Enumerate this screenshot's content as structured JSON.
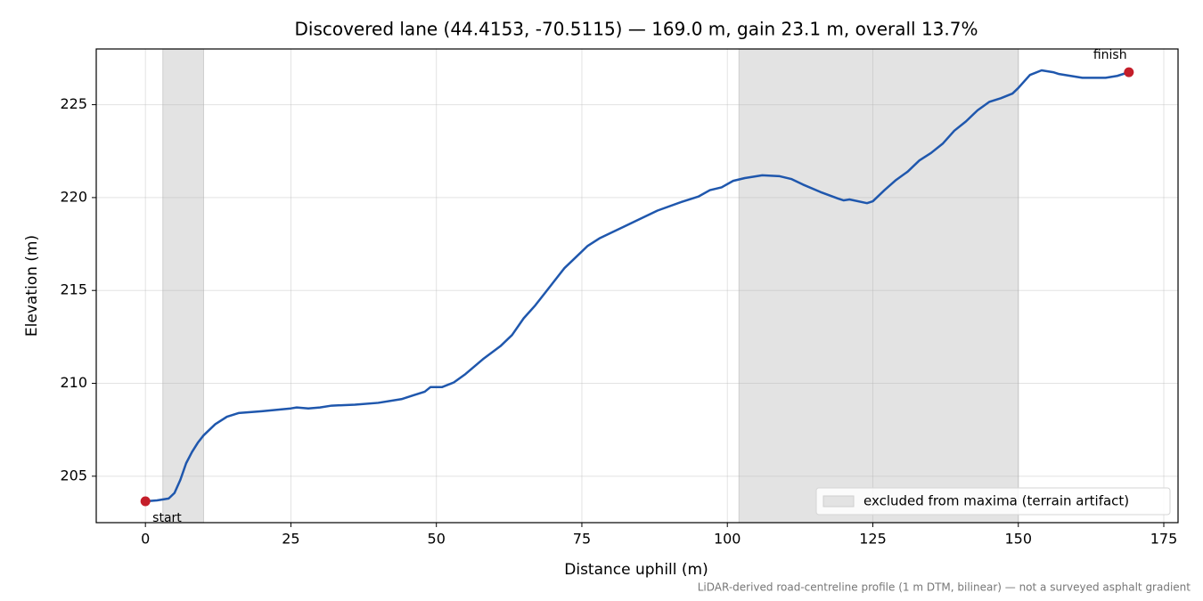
{
  "chart_data": {
    "type": "line",
    "title": "Discovered lane (44.4153, -70.5115) — 169.0 m, gain 23.1 m, overall 13.7%",
    "x_label": "Distance uphill (m)",
    "y_label": "Elevation (m)",
    "footnote": "LiDAR-derived road-centreline profile (1 m DTM, bilinear) — not a surveyed asphalt gradient",
    "x": [
      0,
      2,
      4,
      5,
      6,
      7,
      8,
      9,
      10,
      12,
      14,
      16,
      20,
      25,
      26,
      28,
      30,
      32,
      36,
      40,
      44,
      46,
      48,
      49,
      51,
      53,
      55,
      58,
      61,
      63,
      65,
      67,
      69,
      71,
      72,
      74,
      76,
      78,
      80,
      84,
      88,
      92,
      95,
      97,
      99,
      101,
      103,
      106,
      109,
      111,
      113,
      116,
      119,
      120,
      121,
      124,
      125,
      127,
      129,
      131,
      133,
      135,
      137,
      139,
      141,
      143,
      145,
      147,
      149,
      150,
      152,
      154,
      156,
      157,
      159,
      161,
      163,
      165,
      167,
      169
    ],
    "series": [
      {
        "color": "#1f57ad",
        "values": [
          203.65,
          203.7,
          203.8,
          204.1,
          204.8,
          205.7,
          206.3,
          206.8,
          207.2,
          207.8,
          208.2,
          208.4,
          208.5,
          208.65,
          208.7,
          208.65,
          208.7,
          208.8,
          208.85,
          208.95,
          209.15,
          209.35,
          209.55,
          209.8,
          209.8,
          210.05,
          210.5,
          211.3,
          212.0,
          212.6,
          213.5,
          214.2,
          215.0,
          215.8,
          216.2,
          216.8,
          217.4,
          217.8,
          218.1,
          218.7,
          219.3,
          219.75,
          220.05,
          220.4,
          220.55,
          220.9,
          221.05,
          221.2,
          221.15,
          221.0,
          220.7,
          220.3,
          219.95,
          219.85,
          219.9,
          219.7,
          219.8,
          220.4,
          220.95,
          221.4,
          222.0,
          222.4,
          222.9,
          223.6,
          224.1,
          224.7,
          225.15,
          225.35,
          225.6,
          225.9,
          226.6,
          226.85,
          226.75,
          226.65,
          226.55,
          226.45,
          226.45,
          226.45,
          226.55,
          226.75
        ]
      }
    ],
    "spans": [
      [
        3,
        10
      ],
      [
        102,
        150
      ]
    ],
    "span_label": "excluded from maxima (terrain artifact)",
    "span_color": "#e3e3e3",
    "annotations": [
      {
        "text": "start",
        "x": 0,
        "y": 203.65,
        "position": "below"
      },
      {
        "text": "finish",
        "x": 169,
        "y": 226.75,
        "position": "above"
      }
    ],
    "point_color": "#c41e2a",
    "xlim": [
      -8.45,
      177.45
    ],
    "ylim": [
      202.5,
      228.0
    ],
    "xticks": [
      0,
      25,
      50,
      75,
      100,
      125,
      150,
      175
    ],
    "yticks": [
      205,
      210,
      215,
      220,
      225
    ],
    "grid": true,
    "legend": "lower right"
  }
}
